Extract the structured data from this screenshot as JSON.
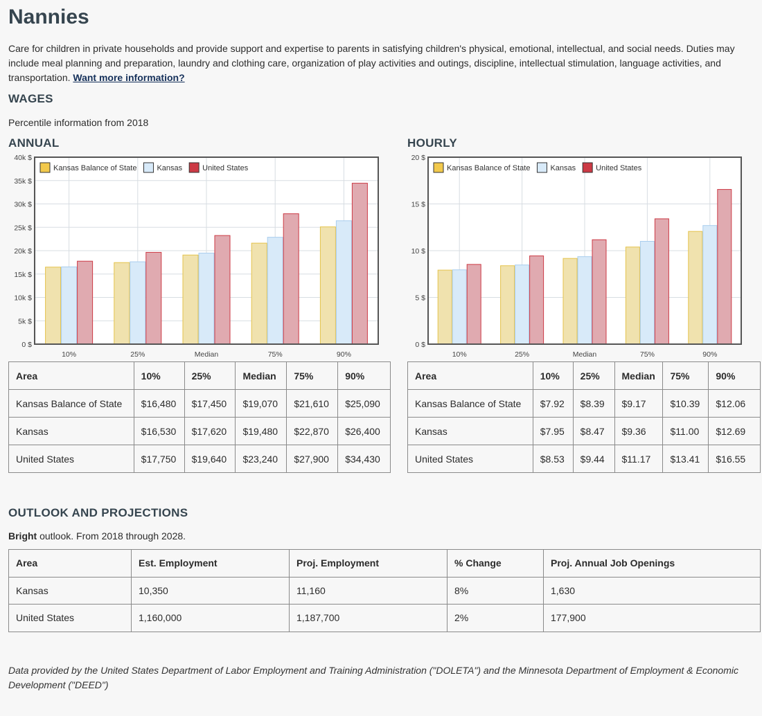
{
  "title": "Nannies",
  "description": "Care for children in private households and provide support and expertise to parents in satisfying children's physical, emotional, intellectual, and social needs. Duties may include meal planning and preparation, laundry and clothing care, organization of play activities and outings, discipline, intellectual stimulation, language activities, and transportation.",
  "more_info_link": "Want more information?",
  "wages": {
    "heading": "WAGES",
    "percentile_note": "Percentile information from 2018",
    "annual_heading": "ANNUAL",
    "hourly_heading": "HOURLY",
    "table_headers": [
      "Area",
      "10%",
      "25%",
      "Median",
      "75%",
      "90%"
    ],
    "annual_rows": [
      [
        "Kansas Balance of State",
        "$16,480",
        "$17,450",
        "$19,070",
        "$21,610",
        "$25,090"
      ],
      [
        "Kansas",
        "$16,530",
        "$17,620",
        "$19,480",
        "$22,870",
        "$26,400"
      ],
      [
        "United States",
        "$17,750",
        "$19,640",
        "$23,240",
        "$27,900",
        "$34,430"
      ]
    ],
    "hourly_rows": [
      [
        "Kansas Balance of State",
        "$7.92",
        "$8.39",
        "$9.17",
        "$10.39",
        "$12.06"
      ],
      [
        "Kansas",
        "$7.95",
        "$8.47",
        "$9.36",
        "$11.00",
        "$12.69"
      ],
      [
        "United States",
        "$8.53",
        "$9.44",
        "$11.17",
        "$13.41",
        "$16.55"
      ]
    ]
  },
  "chart_data": [
    {
      "type": "bar",
      "categories": [
        "10%",
        "25%",
        "Median",
        "75%",
        "90%"
      ],
      "series": [
        {
          "name": "Kansas Balance of State",
          "values": [
            16480,
            17450,
            19070,
            21610,
            25090
          ]
        },
        {
          "name": "Kansas",
          "values": [
            16530,
            17620,
            19480,
            22870,
            26400
          ]
        },
        {
          "name": "United States",
          "values": [
            17750,
            19640,
            23240,
            27900,
            34430
          ]
        }
      ],
      "ylim": [
        0,
        40000
      ],
      "yticks": [
        "0 $",
        "5k $",
        "10k $",
        "15k $",
        "20k $",
        "25k $",
        "30k $",
        "35k $",
        "40k $"
      ],
      "yticks_values": [
        0,
        5000,
        10000,
        15000,
        20000,
        25000,
        30000,
        35000,
        40000
      ],
      "legend": "top-left",
      "grid": true
    },
    {
      "type": "bar",
      "categories": [
        "10%",
        "25%",
        "Median",
        "75%",
        "90%"
      ],
      "series": [
        {
          "name": "Kansas Balance of State",
          "values": [
            7.92,
            8.39,
            9.17,
            10.39,
            12.06
          ]
        },
        {
          "name": "Kansas",
          "values": [
            7.95,
            8.47,
            9.36,
            11.0,
            12.69
          ]
        },
        {
          "name": "United States",
          "values": [
            8.53,
            9.44,
            11.17,
            13.41,
            16.55
          ]
        }
      ],
      "ylim": [
        0,
        20
      ],
      "yticks": [
        "0 $",
        "5 $",
        "10 $",
        "15 $",
        "20 $"
      ],
      "yticks_values": [
        0,
        5,
        10,
        15,
        20
      ],
      "legend": "top-left",
      "grid": true
    }
  ],
  "colors": {
    "series_fill": [
      "#f0e2ae",
      "#d8eaf9",
      "#e0aab0"
    ],
    "series_stroke": [
      "#e4c34c",
      "#a9cdee",
      "#cc3a45"
    ],
    "legend_fill": [
      "#f2c94c",
      "#d8eaf9",
      "#cc3a45"
    ]
  },
  "outlook": {
    "heading": "OUTLOOK AND PROJECTIONS",
    "bright_word": "Bright",
    "bright_rest": " outlook. From 2018 through 2028.",
    "headers": [
      "Area",
      "Est. Employment",
      "Proj. Employment",
      "% Change",
      "Proj. Annual Job Openings"
    ],
    "rows": [
      [
        "Kansas",
        "10,350",
        "11,160",
        "8%",
        "1,630"
      ],
      [
        "United States",
        "1,160,000",
        "1,187,700",
        "2%",
        "177,900"
      ]
    ]
  },
  "footer": "Data provided by the United States Department of Labor Employment and Training Administration (\"DOLETA\") and the Minnesota Department of Employment & Economic Development (\"DEED\")"
}
